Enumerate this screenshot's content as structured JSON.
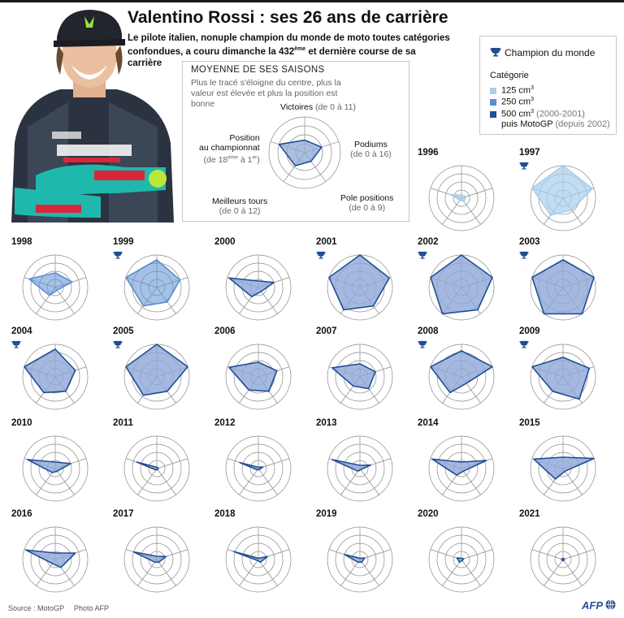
{
  "header": {
    "title": "Valentino Rossi : ses 26 ans de carrière",
    "subtitle_part1": "Le pilote italien, nonuple champion du monde de moto toutes catégories confondues, a couru dimanche la 432",
    "subtitle_sup": "ème",
    "subtitle_part2": " et dernière course de sa carrière"
  },
  "legend": {
    "champion_label": "Champion du monde",
    "category_title": "Catégorie",
    "items": [
      {
        "label": "125 cm",
        "sup": "3",
        "extra": "",
        "extra2": "",
        "color": "#a8ceec"
      },
      {
        "label": "250 cm",
        "sup": "3",
        "extra": "",
        "extra2": "",
        "color": "#5b8ed0"
      },
      {
        "label": "500 cm",
        "sup": "3",
        "extra": " (2000-2001)",
        "extra2": "puis MotoGP",
        "extra3": " (depuis 2002)",
        "color": "#1f4e94"
      }
    ]
  },
  "average": {
    "title": "MOYENNE DE SES SAISONS",
    "description": "Plus le tracé s'éloigne du centre, plus la valeur est élevée et plus la position est bonne",
    "axes": {
      "victoires": {
        "name": "Victoires",
        "range": "(de 0 à 11)"
      },
      "podiums": {
        "name": "Podiums",
        "range": "(de 0 à 16)"
      },
      "poles": {
        "name": "Pole positions",
        "range": "(de 0 à 9)"
      },
      "tours": {
        "name": "Meilleurs tours",
        "range": "(de 0 à 12)"
      },
      "position": {
        "name1": "Position",
        "name2": "au championnat",
        "range_pre": "(de 18",
        "sup1": "ème",
        "range_mid": " à 1",
        "sup2": "er",
        "range_post": ")"
      }
    }
  },
  "colors": {
    "c125": "#a8ceec",
    "c250": "#5b8ed0",
    "c500": "#1f4e94",
    "fill500": "#8fa8d8",
    "grid": "#8a8a8a"
  },
  "chart_data": {
    "type": "radar",
    "axes": [
      "Victoires",
      "Podiums",
      "Pole positions",
      "Meilleurs tours",
      "Position au championnat"
    ],
    "ranges": {
      "Victoires": [
        0,
        11
      ],
      "Podiums": [
        0,
        16
      ],
      "Pole positions": [
        0,
        9
      ],
      "Meilleurs tours": [
        0,
        12
      ],
      "Position au championnat": [
        18,
        1
      ]
    },
    "note": "values as fraction of axis range (0 = centre, 1 = outer ring)",
    "average": [
      0.35,
      0.5,
      0.3,
      0.45,
      0.75
    ],
    "seasons": [
      {
        "year": "1996",
        "category": "125",
        "champion": false,
        "values": [
          0.1,
          0.15,
          0.12,
          0.08,
          0.35
        ]
      },
      {
        "year": "1997",
        "category": "125",
        "champion": true,
        "values": [
          1.0,
          0.95,
          0.45,
          0.65,
          1.0
        ]
      },
      {
        "year": "1998",
        "category": "250",
        "champion": false,
        "values": [
          0.45,
          0.55,
          0.1,
          0.3,
          0.85
        ]
      },
      {
        "year": "1999",
        "category": "250",
        "champion": true,
        "values": [
          0.85,
          0.75,
          0.55,
          0.7,
          1.0
        ]
      },
      {
        "year": "2000",
        "category": "500",
        "champion": false,
        "values": [
          0.2,
          0.5,
          0.15,
          0.35,
          0.95
        ]
      },
      {
        "year": "2001",
        "category": "500",
        "champion": true,
        "values": [
          1.0,
          0.95,
          0.7,
          0.85,
          1.0
        ]
      },
      {
        "year": "2002",
        "category": "500",
        "champion": true,
        "values": [
          1.0,
          1.0,
          0.85,
          1.0,
          1.0
        ]
      },
      {
        "year": "2003",
        "category": "500",
        "champion": true,
        "values": [
          0.85,
          1.0,
          1.0,
          1.0,
          1.0
        ]
      },
      {
        "year": "2004",
        "category": "500",
        "champion": true,
        "values": [
          0.85,
          0.65,
          0.55,
          0.6,
          1.0
        ]
      },
      {
        "year": "2005",
        "category": "500",
        "champion": true,
        "values": [
          1.0,
          1.0,
          0.55,
          0.7,
          1.0
        ]
      },
      {
        "year": "2006",
        "category": "500",
        "champion": false,
        "values": [
          0.45,
          0.6,
          0.55,
          0.5,
          0.95
        ]
      },
      {
        "year": "2007",
        "category": "500",
        "champion": false,
        "values": [
          0.4,
          0.5,
          0.45,
          0.35,
          0.9
        ]
      },
      {
        "year": "2008",
        "category": "500",
        "champion": true,
        "values": [
          0.8,
          1.0,
          0.25,
          0.6,
          1.0
        ]
      },
      {
        "year": "2009",
        "category": "500",
        "champion": true,
        "values": [
          0.6,
          0.85,
          0.85,
          0.55,
          1.0
        ]
      },
      {
        "year": "2010",
        "category": "500",
        "champion": false,
        "values": [
          0.2,
          0.5,
          0.1,
          0.15,
          0.9
        ]
      },
      {
        "year": "2011",
        "category": "500",
        "champion": false,
        "values": [
          0.0,
          0.05,
          0.0,
          0.05,
          0.65
        ]
      },
      {
        "year": "2012",
        "category": "500",
        "champion": false,
        "values": [
          0.0,
          0.15,
          0.0,
          0.05,
          0.6
        ]
      },
      {
        "year": "2013",
        "category": "500",
        "champion": false,
        "values": [
          0.1,
          0.35,
          0.0,
          0.1,
          0.9
        ]
      },
      {
        "year": "2014",
        "category": "500",
        "champion": false,
        "values": [
          0.2,
          0.8,
          0.1,
          0.25,
          0.95
        ]
      },
      {
        "year": "2015",
        "category": "500",
        "champion": false,
        "values": [
          0.35,
          1.0,
          0.1,
          0.4,
          0.95
        ]
      },
      {
        "year": "2016",
        "category": "500",
        "champion": false,
        "values": [
          0.2,
          0.65,
          0.3,
          0.15,
          0.95
        ]
      },
      {
        "year": "2017",
        "category": "500",
        "champion": false,
        "values": [
          0.1,
          0.3,
          0.1,
          0.1,
          0.75
        ]
      },
      {
        "year": "2018",
        "category": "500",
        "champion": false,
        "values": [
          0.0,
          0.3,
          0.1,
          0.0,
          0.8
        ]
      },
      {
        "year": "2019",
        "category": "500",
        "champion": false,
        "values": [
          0.0,
          0.15,
          0.1,
          0.1,
          0.5
        ]
      },
      {
        "year": "2020",
        "category": "500",
        "champion": false,
        "values": [
          0.0,
          0.07,
          0.0,
          0.1,
          0.15
        ]
      },
      {
        "year": "2021",
        "category": "500",
        "champion": false,
        "values": [
          0.0,
          0.0,
          0.0,
          0.0,
          0.05
        ]
      }
    ]
  },
  "footer": {
    "source": "Source : MotoGP",
    "photo": "Photo AFP",
    "logo": "AFP"
  }
}
